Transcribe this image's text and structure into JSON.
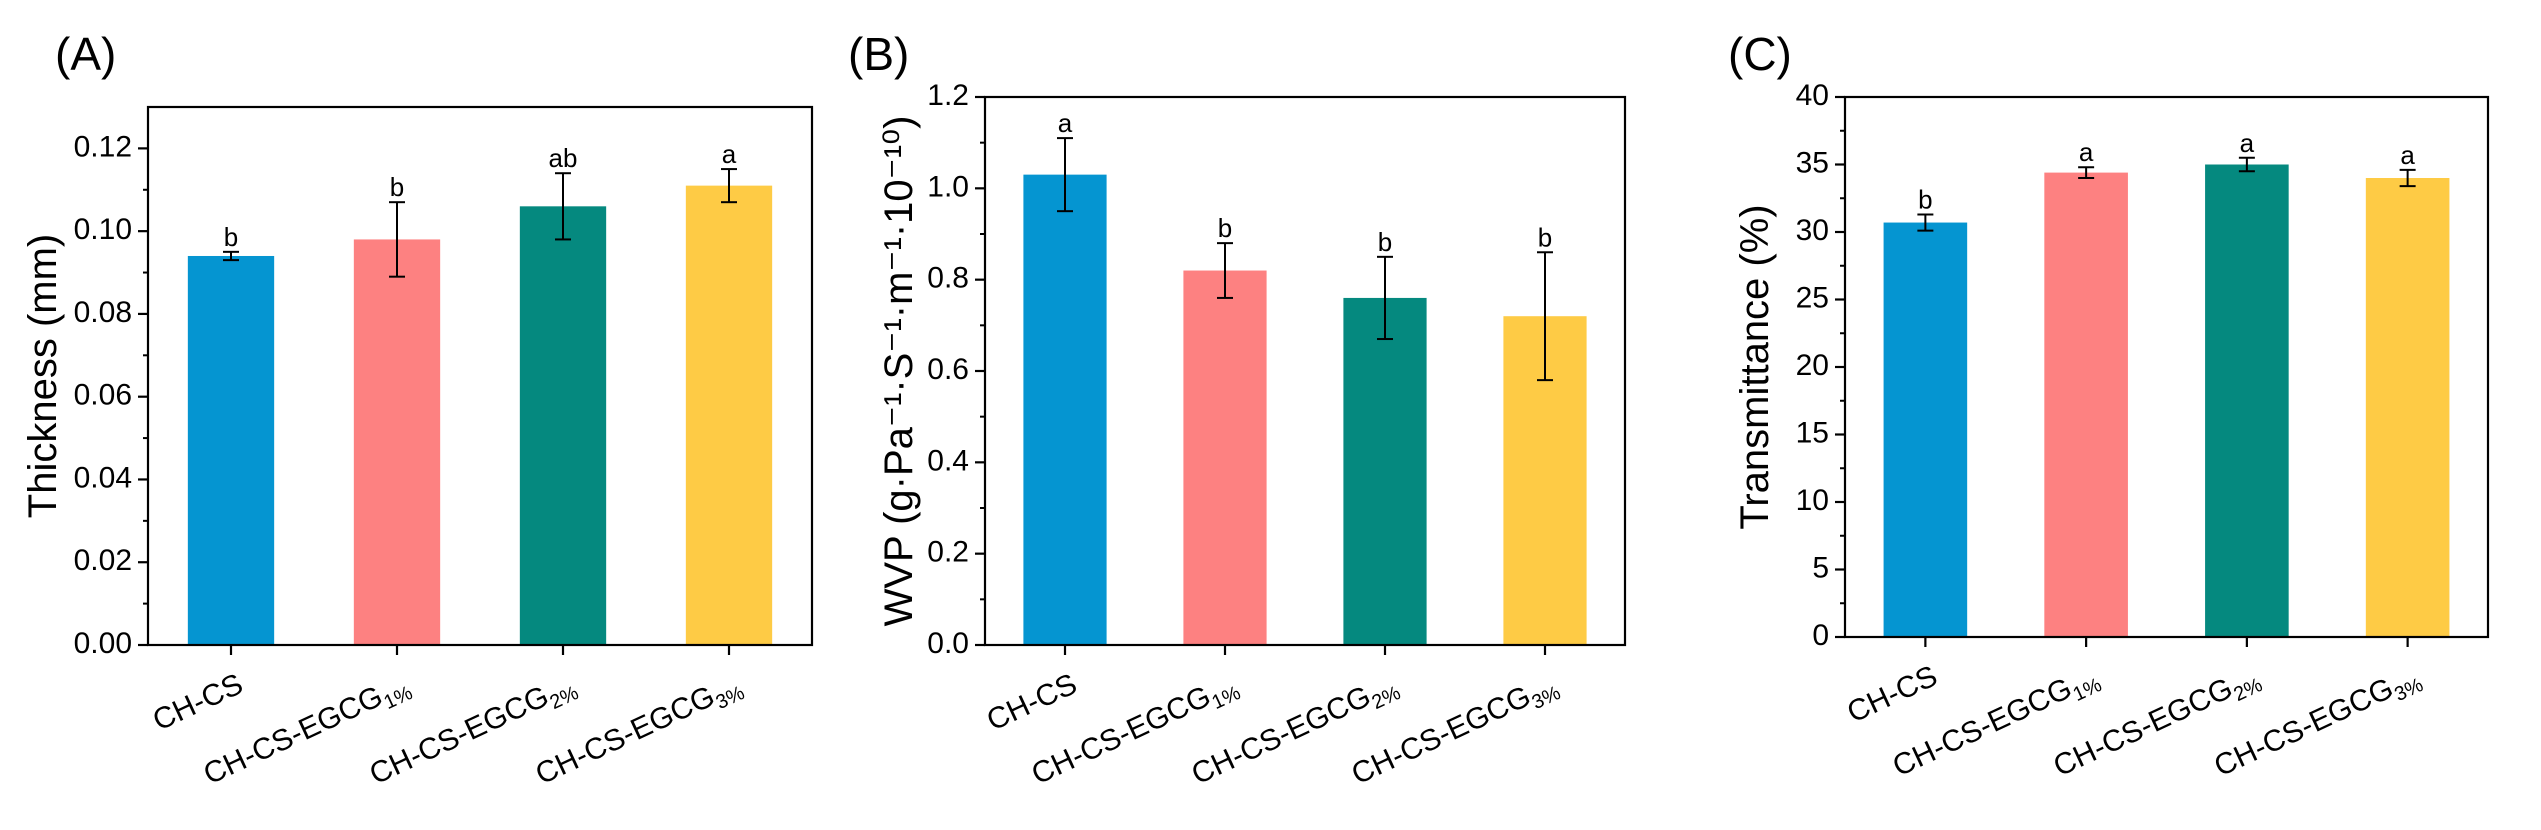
{
  "colors": [
    "#0595d1",
    "#fd8181",
    "#05897f",
    "#fecb45"
  ],
  "chart_data": [
    {
      "type": "bar",
      "panel_label": "(A)",
      "categories": [
        {
          "base": "CH-CS",
          "sub": ""
        },
        {
          "base": "CH-CS-EGCG",
          "sub": "1%"
        },
        {
          "base": "CH-CS-EGCG",
          "sub": "2%"
        },
        {
          "base": "CH-CS-EGCG",
          "sub": "3%"
        }
      ],
      "values": [
        0.094,
        0.098,
        0.106,
        0.111
      ],
      "errors": [
        0.001,
        0.009,
        0.008,
        0.004
      ],
      "significance": [
        "b",
        "b",
        "ab",
        "a"
      ],
      "ylabel": "Thickness (mm)",
      "ylim": [
        0,
        0.13
      ],
      "yticks": [
        "0.00",
        "0.02",
        "0.04",
        "0.06",
        "0.08",
        "0.10",
        "0.12"
      ]
    },
    {
      "type": "bar",
      "panel_label": "(B)",
      "categories": [
        {
          "base": "CH-CS",
          "sub": ""
        },
        {
          "base": "CH-CS-EGCG",
          "sub": "1%"
        },
        {
          "base": "CH-CS-EGCG",
          "sub": "2%"
        },
        {
          "base": "CH-CS-EGCG",
          "sub": "3%"
        }
      ],
      "values": [
        1.03,
        0.82,
        0.76,
        0.72
      ],
      "errors": [
        0.08,
        0.06,
        0.09,
        0.14
      ],
      "significance": [
        "a",
        "b",
        "b",
        "b"
      ],
      "ylabel": "WVP (g·Pa⁻¹·S⁻¹·m⁻¹·10⁻¹⁰)",
      "ylim": [
        0,
        1.2
      ],
      "yticks": [
        "0.0",
        "0.2",
        "0.4",
        "0.6",
        "0.8",
        "1.0",
        "1.2"
      ]
    },
    {
      "type": "bar",
      "panel_label": "(C)",
      "categories": [
        {
          "base": "CH-CS",
          "sub": ""
        },
        {
          "base": "CH-CS-EGCG",
          "sub": "1%"
        },
        {
          "base": "CH-CS-EGCG",
          "sub": "2%"
        },
        {
          "base": "CH-CS-EGCG",
          "sub": "3%"
        }
      ],
      "values": [
        30.7,
        34.4,
        35.0,
        34.0
      ],
      "errors": [
        0.6,
        0.4,
        0.5,
        0.6
      ],
      "significance": [
        "b",
        "a",
        "a",
        "a"
      ],
      "ylabel": "Transmittance (%)",
      "ylim": [
        0,
        40
      ],
      "yticks": [
        "0",
        "5",
        "10",
        "15",
        "20",
        "25",
        "30",
        "35",
        "40"
      ]
    }
  ]
}
